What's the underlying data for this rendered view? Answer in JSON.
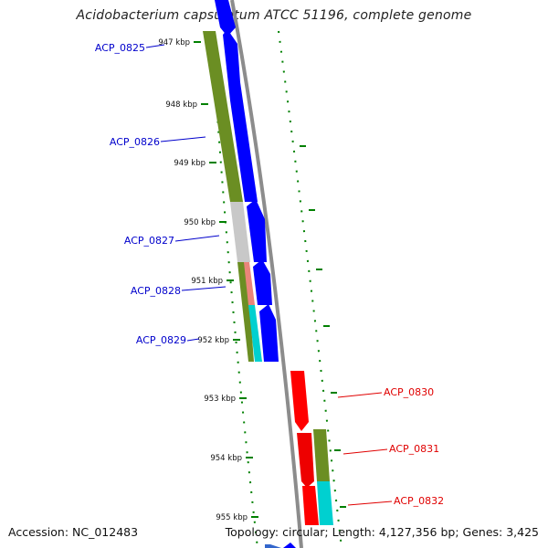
{
  "title": "Acidobacterium capsulatum ATCC 51196, complete genome",
  "footer": {
    "accession": "Accession: NC_012483",
    "summary": "Topology: circular; Length: 4,127,356 bp; Genes: 3,425"
  },
  "colors": {
    "forward_cds": "#0000ff",
    "reverse_cds": "#ff0000",
    "cog_green": "#6b8e23",
    "cog_gray": "#c8c8c8",
    "cog_salmon": "#e9857a",
    "cog_cyan": "#00d0d0",
    "backbone": "#8c8c8c",
    "tick": "#008000",
    "label_forward": "#0000cc",
    "label_reverse": "#e00000"
  },
  "scale_ticks": [
    {
      "label": "947 kbp"
    },
    {
      "label": "948 kbp"
    },
    {
      "label": "949 kbp"
    },
    {
      "label": "950 kbp"
    },
    {
      "label": "951 kbp"
    },
    {
      "label": "952 kbp"
    },
    {
      "label": "953 kbp"
    },
    {
      "label": "954 kbp"
    },
    {
      "label": "955 kbp"
    }
  ],
  "genes": [
    {
      "name": "ACP_0825",
      "strand": "forward"
    },
    {
      "name": "ACP_0826",
      "strand": "forward"
    },
    {
      "name": "ACP_0827",
      "strand": "forward"
    },
    {
      "name": "ACP_0828",
      "strand": "forward"
    },
    {
      "name": "ACP_0829",
      "strand": "forward"
    },
    {
      "name": "ACP_0830",
      "strand": "reverse"
    },
    {
      "name": "ACP_0831",
      "strand": "reverse"
    },
    {
      "name": "ACP_0832",
      "strand": "reverse"
    }
  ]
}
